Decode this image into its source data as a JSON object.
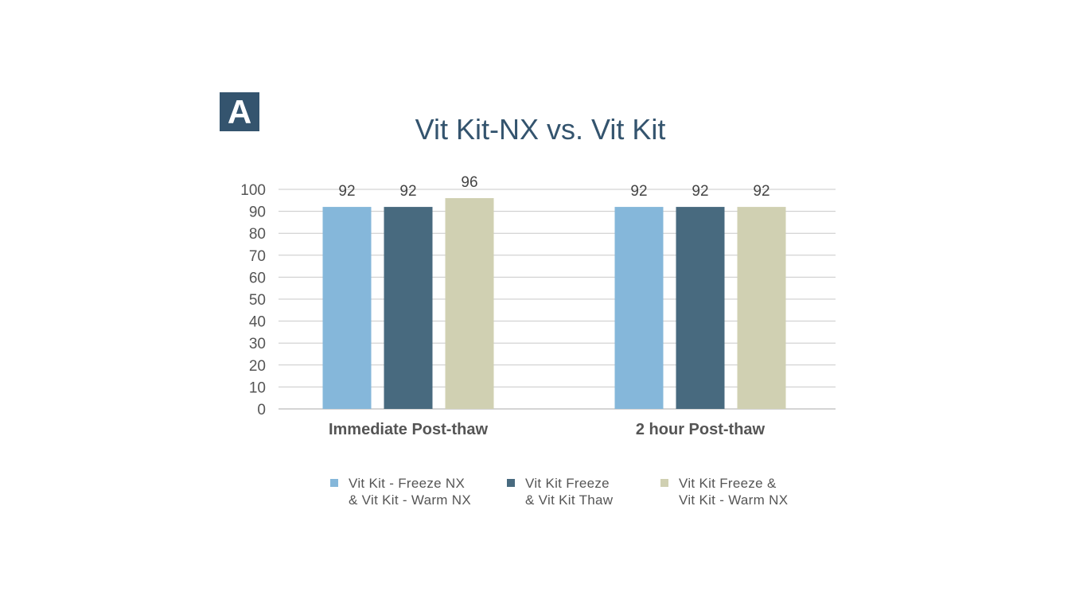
{
  "panel_label": "A",
  "chart_data": {
    "type": "bar",
    "title": "Vit Kit-NX vs. Vit Kit",
    "xlabel": "",
    "ylabel": "",
    "ylim": [
      0,
      100
    ],
    "yticks": [
      0,
      10,
      20,
      30,
      40,
      50,
      60,
      70,
      80,
      90,
      100
    ],
    "grid": true,
    "legend_position": "bottom",
    "categories": [
      "Immediate Post-thaw",
      "2 hour Post-thaw"
    ],
    "series": [
      {
        "name": "Vit Kit - Freeze NX\n& Vit Kit - Warm NX",
        "color": "#85b7da",
        "values": [
          92,
          92
        ]
      },
      {
        "name": "Vit Kit Freeze\n& Vit Kit Thaw",
        "color": "#486a7f",
        "values": [
          92,
          92
        ]
      },
      {
        "name": "Vit Kit Freeze &\nVit Kit - Warm NX",
        "color": "#d0d0b2",
        "values": [
          96,
          92
        ]
      }
    ]
  }
}
